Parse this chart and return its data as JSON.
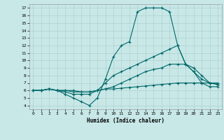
{
  "xlabel": "Humidex (Indice chaleur)",
  "xlim": [
    -0.5,
    23.5
  ],
  "ylim": [
    3.5,
    17.5
  ],
  "xticks": [
    0,
    1,
    2,
    3,
    4,
    5,
    6,
    7,
    8,
    9,
    10,
    11,
    12,
    13,
    14,
    15,
    16,
    17,
    18,
    19,
    20,
    21,
    22,
    23
  ],
  "yticks": [
    4,
    5,
    6,
    7,
    8,
    9,
    10,
    11,
    12,
    13,
    14,
    15,
    16,
    17
  ],
  "bg_color": "#c8e8e8",
  "grid_color": "#b0d0d0",
  "line_color": "#006868",
  "lines": [
    {
      "x": [
        0,
        1,
        2,
        3,
        4,
        5,
        6,
        7,
        8,
        9,
        10,
        11,
        12,
        13,
        14,
        15,
        16,
        17,
        18,
        19,
        20,
        21,
        22,
        23
      ],
      "y": [
        6,
        6,
        6.2,
        6,
        5.5,
        5,
        4.5,
        4,
        5,
        7.5,
        10.5,
        12,
        12.5,
        16.5,
        17,
        17,
        17,
        16.5,
        12,
        9.5,
        8.5,
        7,
        6.5,
        6.5
      ]
    },
    {
      "x": [
        0,
        1,
        2,
        3,
        4,
        5,
        6,
        7,
        8,
        9,
        10,
        11,
        12,
        13,
        14,
        15,
        16,
        17,
        18,
        19,
        20,
        21,
        22,
        23
      ],
      "y": [
        6,
        6,
        6.2,
        6,
        5.8,
        5.5,
        5.5,
        5.5,
        6,
        7,
        8,
        8.5,
        9,
        9.5,
        10,
        10.5,
        11,
        11.5,
        12,
        9.5,
        9,
        8,
        7,
        6.8
      ]
    },
    {
      "x": [
        0,
        1,
        2,
        3,
        4,
        5,
        6,
        7,
        8,
        9,
        10,
        11,
        12,
        13,
        14,
        15,
        16,
        17,
        18,
        19,
        20,
        21,
        22,
        23
      ],
      "y": [
        6,
        6,
        6.2,
        6,
        6,
        5.8,
        5.8,
        5.8,
        6,
        6.2,
        6.5,
        7,
        7.5,
        8,
        8.5,
        8.8,
        9,
        9.5,
        9.5,
        9.5,
        8.5,
        7.5,
        7,
        6.8
      ]
    },
    {
      "x": [
        0,
        1,
        2,
        3,
        4,
        5,
        6,
        7,
        8,
        9,
        10,
        11,
        12,
        13,
        14,
        15,
        16,
        17,
        18,
        19,
        20,
        21,
        22,
        23
      ],
      "y": [
        6,
        6,
        6.2,
        6,
        6,
        6,
        5.8,
        5.8,
        6,
        6.2,
        6.2,
        6.3,
        6.4,
        6.5,
        6.6,
        6.7,
        6.8,
        6.9,
        7,
        7,
        7,
        7,
        7,
        7
      ]
    }
  ]
}
